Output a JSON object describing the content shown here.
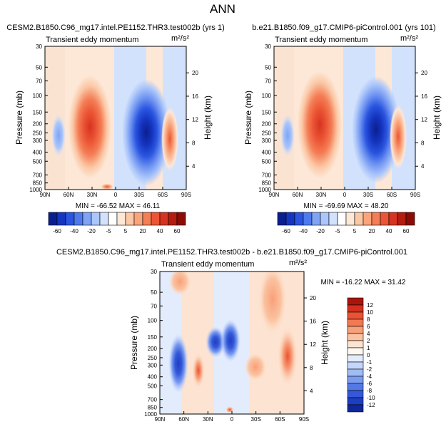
{
  "page_title": "ANN",
  "panels": [
    {
      "case_title": "CESM2.B1850.C96_mg17.intel.PE1152.THR3.test002b (yrs 1)",
      "left_label": "Transient eddy momentum",
      "units": "m²/s²",
      "stats": "MIN = -66.52   MAX = 46.11"
    },
    {
      "case_title": "b.e21.B1850.f09_g17.CMIP6-piControl.001 (yrs 101)",
      "left_label": "Transient eddy momentum",
      "units": "m²/s²",
      "stats": "MIN = -69.69   MAX = 48.20"
    },
    {
      "case_title": "CESM2.B1850.C96_mg17.intel.PE1152.THR3.test002b - b.e21.B1850.f09_g17.CMIP6-piControl.001",
      "left_label": "Transient eddy momentum",
      "units": "m²/s²",
      "stats": "MIN = -16.22   MAX = 31.42"
    }
  ],
  "chart_data": [
    {
      "type": "heatmap",
      "title": "CESM2.B1850.C96_mg17.intel.PE1152.THR3.test002b (yrs 1)",
      "ylabel": "Pressure (mb)",
      "y2label": "Height (km)",
      "x_ticks": [
        "90N",
        "60N",
        "30N",
        "0",
        "30S",
        "60S",
        "90S"
      ],
      "y_ticks": [
        "30",
        "50",
        "70",
        "100",
        "150",
        "200",
        "250",
        "300",
        "400",
        "500",
        "700",
        "850",
        "1000"
      ],
      "y2_ticks": [
        "20",
        "16",
        "12",
        "8",
        "4"
      ],
      "min": -66.52,
      "max": 46.11
    },
    {
      "type": "heatmap",
      "title": "b.e21.B1850.f09_g17.CMIP6-piControl.001 (yrs 101)",
      "ylabel": "Pressure (mb)",
      "y2label": "Height (km)",
      "x_ticks": [
        "90N",
        "60N",
        "30N",
        "0",
        "30S",
        "60S",
        "90S"
      ],
      "y_ticks": [
        "30",
        "50",
        "70",
        "100",
        "150",
        "200",
        "250",
        "300",
        "400",
        "500",
        "700",
        "850",
        "1000"
      ],
      "y2_ticks": [
        "20",
        "16",
        "12",
        "8",
        "4"
      ],
      "min": -69.69,
      "max": 48.2
    },
    {
      "type": "heatmap",
      "title": "CESM2.B1850.C96_mg17.intel.PE1152.THR3.test002b - b.e21.B1850.f09_g17.CMIP6-piControl.001",
      "ylabel": "Pressure (mb)",
      "y2label": "Height (km)",
      "x_ticks": [
        "90N",
        "60N",
        "30N",
        "0",
        "30S",
        "60S",
        "90S"
      ],
      "y_ticks": [
        "30",
        "50",
        "70",
        "100",
        "150",
        "200",
        "250",
        "300",
        "400",
        "500",
        "700",
        "850",
        "1000"
      ],
      "y2_ticks": [
        "20",
        "16",
        "12",
        "8",
        "4"
      ],
      "min": -16.22,
      "max": 31.42
    }
  ],
  "colorbar_main": {
    "labels": [
      "-60",
      "-40",
      "-20",
      "-5",
      "5",
      "20",
      "40",
      "60"
    ],
    "colors": [
      "#0a1f8f",
      "#1535c0",
      "#2a55e0",
      "#4e7aee",
      "#7fa4f5",
      "#abc6fa",
      "#d3e2fc",
      "#ffffff",
      "#fde7d6",
      "#fbc8a6",
      "#f9a47b",
      "#f47e56",
      "#eb5535",
      "#d63320",
      "#b41c10",
      "#8c0b05"
    ]
  },
  "colorbar_diff": {
    "labels": [
      "12",
      "10",
      "8",
      "6",
      "4",
      "2",
      "1",
      "0",
      "-1",
      "-2",
      "-4",
      "-6",
      "-8",
      "-10",
      "-12"
    ],
    "colors": [
      "#a8150c",
      "#d3301e",
      "#ea5233",
      "#f27a52",
      "#f8a079",
      "#fbc3a1",
      "#fde3d1",
      "#fff7f1",
      "#e3ecfd",
      "#c4d6fa",
      "#a0bcf6",
      "#7b9cf0",
      "#5479e7",
      "#3458d9",
      "#1e3ec0",
      "#0f279a"
    ]
  }
}
